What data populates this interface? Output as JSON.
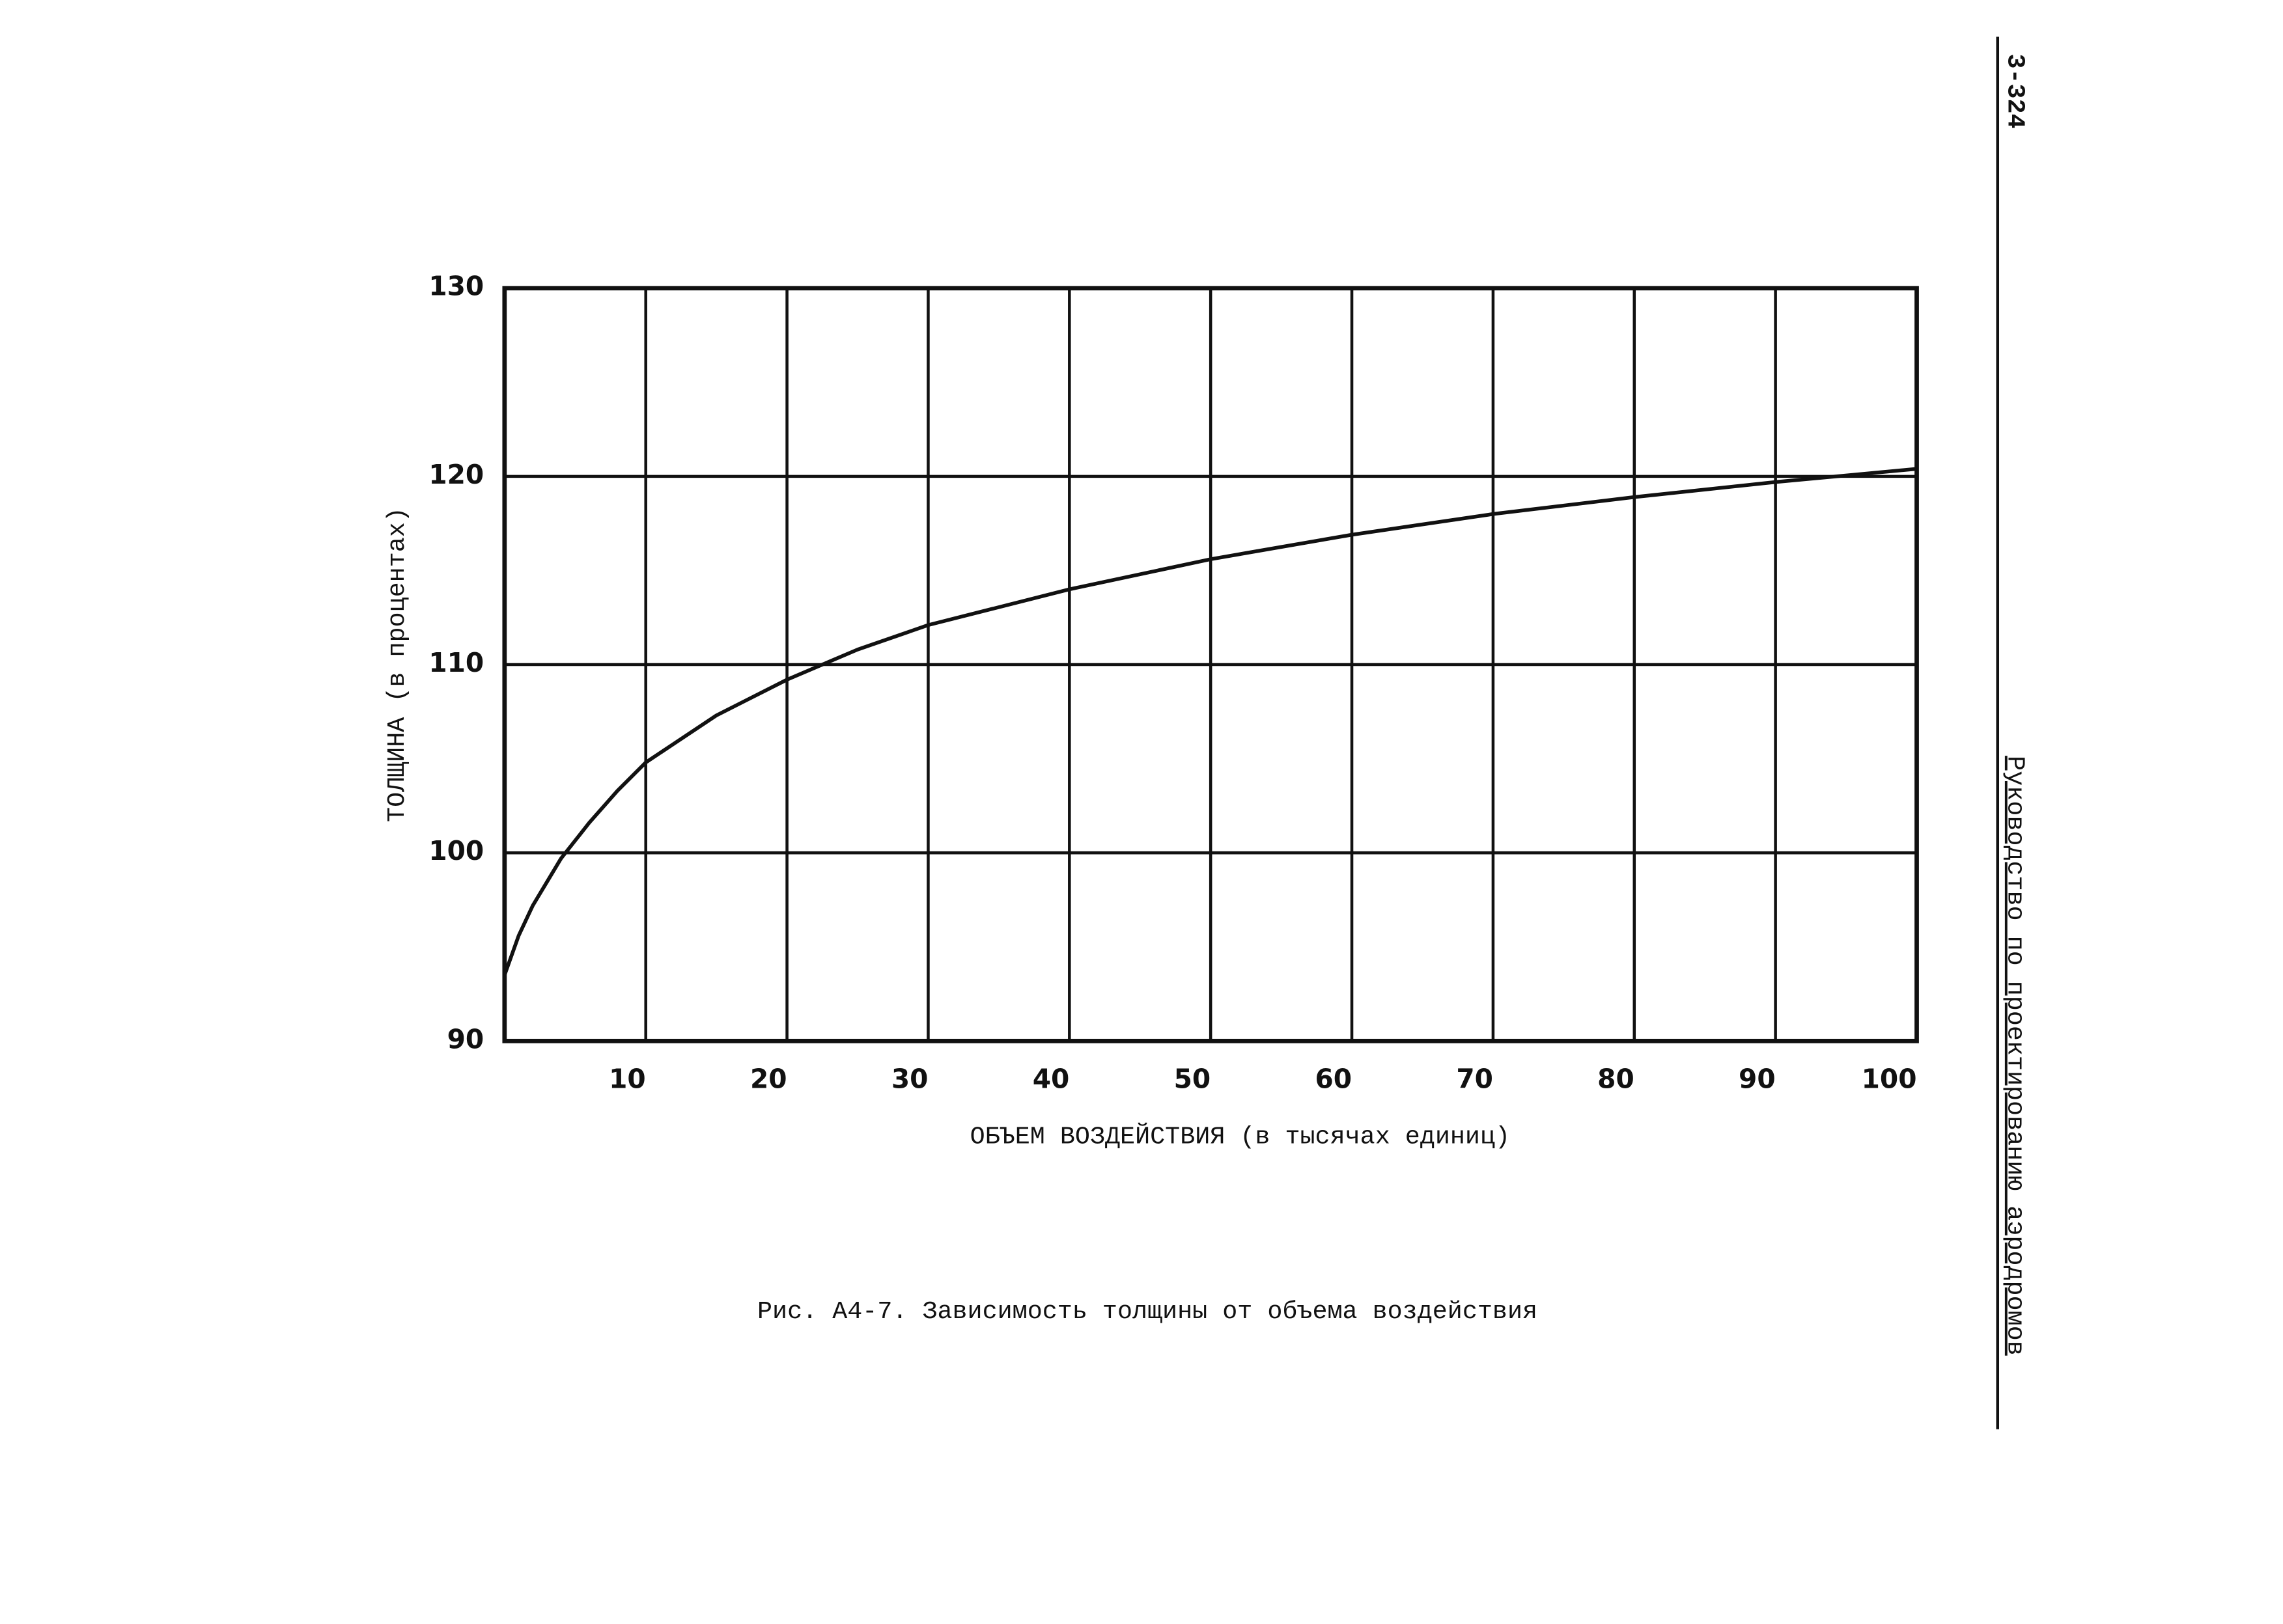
{
  "page_header": {
    "page_number": "3-324",
    "running_title": "Руководство по проектированию аэродромов"
  },
  "chart_data": {
    "type": "line",
    "caption": "Рис. А4-7. Зависимость толщины от объема воздействия",
    "x_label": "ОБЪЕМ ВОЗДЕЙСТВИЯ (в тысячах единиц)",
    "y_label": "ТОЛЩИНА (в процентах)",
    "x": [
      0,
      1,
      2,
      4,
      6,
      8,
      10,
      15,
      20,
      25,
      30,
      40,
      50,
      60,
      70,
      80,
      90,
      100
    ],
    "values": [
      93.5,
      95.6,
      97.2,
      99.7,
      101.6,
      103.3,
      104.8,
      107.3,
      109.2,
      110.8,
      112.1,
      114.0,
      115.6,
      116.9,
      118.0,
      118.9,
      119.7,
      120.4
    ],
    "color": "#111111",
    "xlim": [
      0,
      100
    ],
    "xticks": [
      10,
      20,
      30,
      40,
      50,
      60,
      70,
      80,
      90,
      100
    ],
    "ylim": [
      90,
      130
    ],
    "yticks": [
      90,
      100,
      110,
      120,
      130
    ],
    "grid": true
  }
}
